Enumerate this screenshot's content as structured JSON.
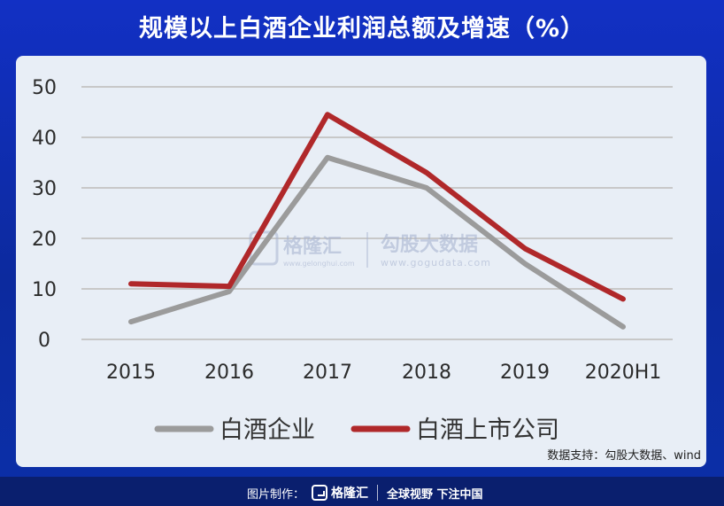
{
  "title": "规模以上白酒企业利润总额及增速（%）",
  "source": "数据支持：勾股大数据、wind",
  "footer": {
    "made_by": "图片制作：",
    "brand": "格隆汇",
    "slogan": "全球视野 下注中国"
  },
  "watermark": {
    "left_text": "格隆汇",
    "left_url": "www.gelonghui.com",
    "right_text": "勾股大数据",
    "right_url": "www.gogudata.com"
  },
  "colors": {
    "series1": "#9b9b9b",
    "series2": "#b0282a",
    "grid": "#c8c8c8"
  },
  "chart_data": {
    "type": "line",
    "title": "规模以上白酒企业利润总额及增速（%）",
    "categories": [
      "2015",
      "2016",
      "2017",
      "2018",
      "2019",
      "2020H1"
    ],
    "series": [
      {
        "name": "白酒企业",
        "values": [
          3.5,
          9.5,
          36,
          30,
          15,
          2.5
        ]
      },
      {
        "name": "白酒上市公司",
        "values": [
          11,
          10.5,
          44.5,
          33,
          18,
          8
        ]
      }
    ],
    "ylim": [
      0,
      50
    ],
    "yticks": [
      0,
      10,
      20,
      30,
      40,
      50
    ],
    "grid": true,
    "legend": "bottom"
  }
}
